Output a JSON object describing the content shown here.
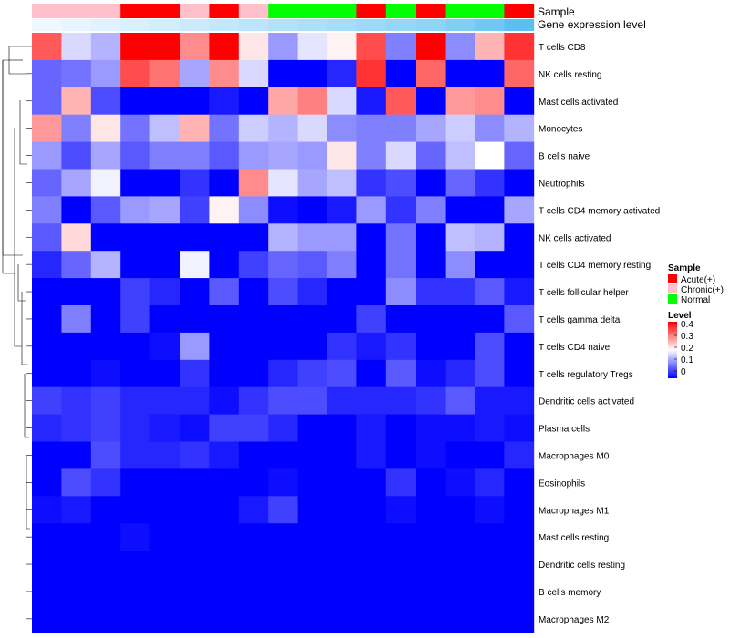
{
  "chart_data": {
    "type": "heatmap",
    "title": "",
    "annotation_row_labels": {
      "sample": "Sample",
      "gene_expression": "Gene expression level"
    },
    "columns": 17,
    "sample_annotation": [
      "Chronic(+)",
      "Chronic(+)",
      "Chronic(+)",
      "Acute(+)",
      "Acute(+)",
      "Chronic(+)",
      "Acute(+)",
      "Chronic(+)",
      "Normal",
      "Normal",
      "Normal",
      "Acute(+)",
      "Normal",
      "Acute(+)",
      "Normal",
      "Normal",
      "Acute(+)"
    ],
    "gene_expression_annotation": [
      0.0,
      0.05,
      0.1,
      0.15,
      0.2,
      0.25,
      0.3,
      0.35,
      0.4,
      0.45,
      0.5,
      0.55,
      0.6,
      0.65,
      0.75,
      0.85,
      1.0
    ],
    "rows": [
      "T cells CD8",
      "NK cells resting",
      "Mast cells activated",
      "Monocytes",
      "B cells naive",
      "Neutrophils",
      "T cells CD4 memory activated",
      "NK cells activated",
      "T cells CD4 memory resting",
      "T cells follicular helper",
      "T cells gamma delta",
      "T cells CD4 naive",
      "T cells regulatory  Tregs",
      "Dendritic cells activated",
      "Plasma cells",
      "Macrophages M0",
      "Eosinophils",
      "Macrophages M1",
      "Mast cells resting",
      "Dendritic cells resting",
      "B cells memory",
      "Macrophages M2"
    ],
    "values": [
      [
        0.33,
        0.17,
        0.14,
        0.4,
        0.4,
        0.29,
        0.4,
        0.22,
        0.12,
        0.18,
        0.21,
        0.34,
        0.1,
        0.4,
        0.11,
        0.26,
        0.36
      ],
      [
        0.08,
        0.09,
        0.12,
        0.34,
        0.31,
        0.13,
        0.29,
        0.17,
        0.0,
        0.0,
        0.03,
        0.36,
        0.0,
        0.32,
        0.0,
        0.0,
        0.32
      ],
      [
        0.08,
        0.26,
        0.06,
        0.0,
        0.0,
        0.0,
        0.02,
        0.0,
        0.27,
        0.3,
        0.17,
        0.02,
        0.33,
        0.0,
        0.28,
        0.29,
        0.0
      ],
      [
        0.28,
        0.1,
        0.22,
        0.09,
        0.15,
        0.26,
        0.09,
        0.16,
        0.14,
        0.17,
        0.11,
        0.1,
        0.1,
        0.13,
        0.16,
        0.11,
        0.14
      ],
      [
        0.12,
        0.06,
        0.13,
        0.07,
        0.1,
        0.1,
        0.07,
        0.12,
        0.13,
        0.12,
        0.22,
        0.1,
        0.17,
        0.08,
        0.15,
        0.2,
        0.08
      ],
      [
        0.08,
        0.13,
        0.19,
        0.0,
        0.0,
        0.04,
        0.0,
        0.29,
        0.18,
        0.13,
        0.15,
        0.04,
        0.06,
        0.0,
        0.08,
        0.04,
        0.0
      ],
      [
        0.1,
        0.0,
        0.07,
        0.12,
        0.13,
        0.05,
        0.21,
        0.11,
        0.01,
        0.0,
        0.02,
        0.12,
        0.04,
        0.1,
        0.0,
        0.0,
        0.13
      ],
      [
        0.07,
        0.23,
        0.0,
        0.0,
        0.0,
        0.0,
        0.0,
        0.0,
        0.14,
        0.12,
        0.12,
        0.0,
        0.09,
        0.0,
        0.15,
        0.14,
        0.0
      ],
      [
        0.03,
        0.08,
        0.14,
        0.0,
        0.0,
        0.19,
        0.0,
        0.05,
        0.08,
        0.07,
        0.1,
        0.0,
        0.09,
        0.0,
        0.11,
        0.0,
        0.0
      ],
      [
        0.0,
        0.0,
        0.0,
        0.05,
        0.03,
        0.0,
        0.07,
        0.0,
        0.06,
        0.03,
        0.0,
        0.0,
        0.11,
        0.04,
        0.04,
        0.07,
        0.02
      ],
      [
        0.0,
        0.1,
        0.0,
        0.05,
        0.0,
        0.0,
        0.0,
        0.0,
        0.0,
        0.0,
        0.0,
        0.05,
        0.0,
        0.0,
        0.0,
        0.0,
        0.07
      ],
      [
        0.0,
        0.0,
        0.0,
        0.0,
        0.01,
        0.12,
        0.0,
        0.0,
        0.0,
        0.0,
        0.04,
        0.02,
        0.04,
        0.0,
        0.0,
        0.06,
        0.0
      ],
      [
        0.0,
        0.0,
        0.01,
        0.0,
        0.0,
        0.04,
        0.0,
        0.0,
        0.03,
        0.05,
        0.06,
        0.0,
        0.07,
        0.01,
        0.03,
        0.06,
        0.0
      ],
      [
        0.05,
        0.04,
        0.05,
        0.03,
        0.03,
        0.03,
        0.01,
        0.04,
        0.06,
        0.06,
        0.03,
        0.03,
        0.03,
        0.04,
        0.07,
        0.02,
        0.02
      ],
      [
        0.03,
        0.04,
        0.05,
        0.03,
        0.02,
        0.01,
        0.05,
        0.05,
        0.03,
        0.0,
        0.0,
        0.02,
        0.0,
        0.01,
        0.01,
        0.02,
        0.01
      ],
      [
        0.0,
        0.0,
        0.06,
        0.03,
        0.03,
        0.04,
        0.02,
        0.0,
        0.0,
        0.0,
        0.0,
        0.02,
        0.0,
        0.01,
        0.0,
        0.0,
        0.03
      ],
      [
        0.0,
        0.06,
        0.04,
        0.0,
        0.0,
        0.0,
        0.0,
        0.0,
        0.01,
        0.0,
        0.0,
        0.0,
        0.04,
        0.0,
        0.01,
        0.03,
        0.0
      ],
      [
        0.01,
        0.02,
        0.0,
        0.0,
        0.0,
        0.0,
        0.0,
        0.02,
        0.05,
        0.0,
        0.0,
        0.0,
        0.01,
        0.0,
        0.0,
        0.01,
        0.0
      ],
      [
        0.0,
        0.0,
        0.0,
        0.01,
        0.0,
        0.0,
        0.0,
        0.0,
        0.0,
        0.0,
        0.0,
        0.0,
        0.0,
        0.0,
        0.0,
        0.0,
        0.0
      ],
      [
        0.0,
        0.0,
        0.0,
        0.0,
        0.0,
        0.0,
        0.0,
        0.0,
        0.0,
        0.0,
        0.0,
        0.0,
        0.0,
        0.0,
        0.0,
        0.0,
        0.0
      ],
      [
        0.0,
        0.0,
        0.0,
        0.0,
        0.0,
        0.0,
        0.0,
        0.0,
        0.0,
        0.0,
        0.0,
        0.0,
        0.0,
        0.0,
        0.0,
        0.0,
        0.0
      ],
      [
        0.0,
        0.0,
        0.0,
        0.0,
        0.0,
        0.0,
        0.0,
        0.0,
        0.0,
        0.0,
        0.0,
        0.0,
        0.0,
        0.0,
        0.0,
        0.0,
        0.0
      ]
    ],
    "color_scale": {
      "low": "#0000ff",
      "mid": "#ffffff",
      "high": "#ff0000",
      "domain": [
        0,
        0.2,
        0.4
      ]
    },
    "sample_legend": {
      "title": "Sample",
      "entries": [
        {
          "label": "Acute(+)",
          "color": "#ff0000"
        },
        {
          "label": "Chronic(+)",
          "color": "#ffc0cb"
        },
        {
          "label": "Normal",
          "color": "#00ff00"
        }
      ]
    },
    "level_legend": {
      "title": "Level",
      "ticks": [
        "0.4",
        "0.3",
        "0.2",
        "0.1",
        "0"
      ]
    },
    "gene_expression_colors": {
      "low": "#f0f8ff",
      "high": "#5bc0f0"
    },
    "dendrogram_side": "left"
  }
}
